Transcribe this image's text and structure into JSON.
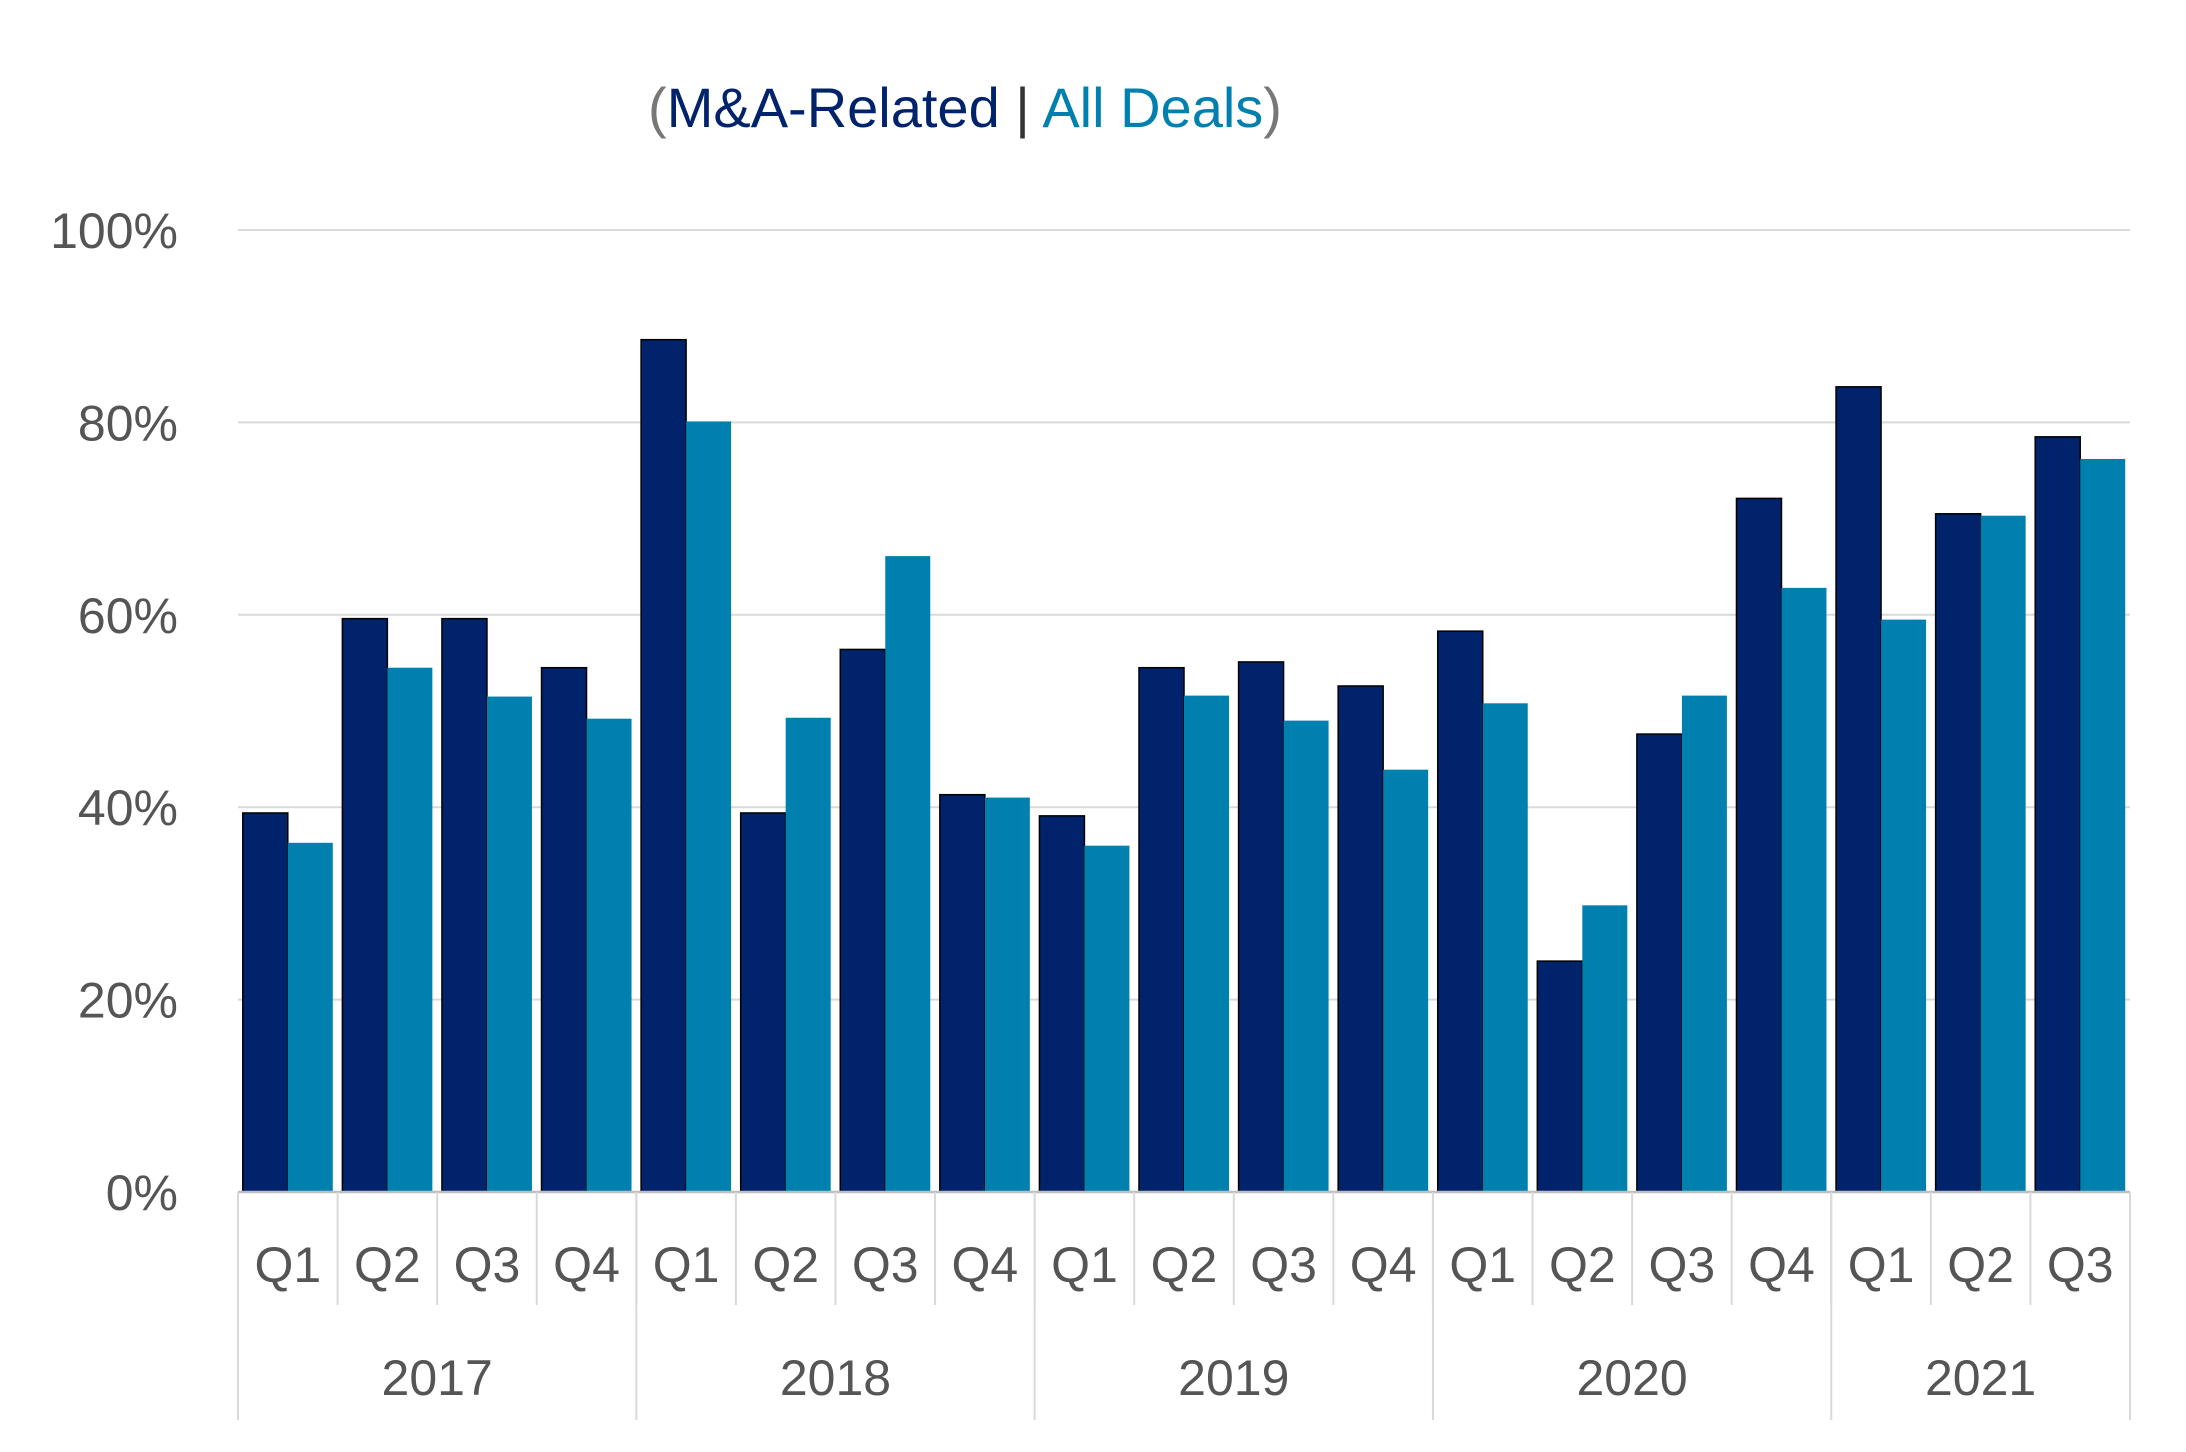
{
  "title": {
    "open": "(",
    "series1": "M&A-Related",
    "separator": " | ",
    "series2": "All Deals",
    "close": ")"
  },
  "colors": {
    "series1": "#00236c",
    "series2": "#0080ae",
    "grid": "#d9d9d9",
    "axis": "#bfbfbf",
    "paren": "#777777",
    "text": "#555555"
  },
  "chart_data": {
    "type": "bar",
    "title": "(M&A-Related | All Deals)",
    "xlabel": "",
    "ylabel": "",
    "ylim": [
      0,
      100
    ],
    "yticks": [
      "0%",
      "20%",
      "40%",
      "60%",
      "80%",
      "100%"
    ],
    "yticks_values": [
      0,
      20,
      40,
      60,
      80,
      100
    ],
    "grid": true,
    "legend": "title",
    "categories": [
      "Q1",
      "Q2",
      "Q3",
      "Q4",
      "Q1",
      "Q2",
      "Q3",
      "Q4",
      "Q1",
      "Q2",
      "Q3",
      "Q4",
      "Q1",
      "Q2",
      "Q3",
      "Q4",
      "Q1",
      "Q2",
      "Q3"
    ],
    "groups": [
      {
        "label": "2017",
        "count": 4
      },
      {
        "label": "2018",
        "count": 4
      },
      {
        "label": "2019",
        "count": 4
      },
      {
        "label": "2020",
        "count": 4
      },
      {
        "label": "2021",
        "count": 3
      }
    ],
    "series": [
      {
        "name": "M&A-Related",
        "values": [
          39.4,
          59.6,
          59.6,
          54.5,
          88.6,
          39.4,
          56.4,
          41.3,
          39.1,
          54.5,
          55.1,
          52.6,
          58.3,
          24.0,
          47.6,
          72.1,
          83.7,
          70.5,
          78.5
        ]
      },
      {
        "name": "All Deals",
        "values": [
          36.3,
          54.5,
          51.5,
          49.2,
          80.1,
          49.3,
          66.1,
          41.0,
          36.0,
          51.6,
          49.0,
          43.9,
          50.8,
          29.8,
          51.6,
          62.8,
          59.5,
          70.3,
          76.2
        ]
      }
    ]
  }
}
